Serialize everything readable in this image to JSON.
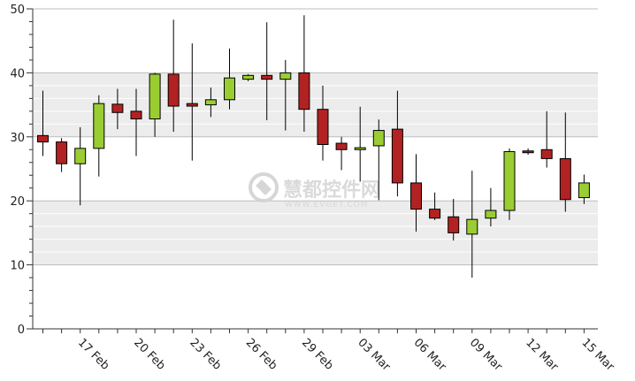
{
  "chart_data": {
    "type": "candlestick",
    "ylim": [
      0,
      50
    ],
    "yticks": [
      0,
      10,
      20,
      30,
      40,
      50
    ],
    "x_tick_labels": [
      "17 Feb",
      "20 Feb",
      "23 Feb",
      "26 Feb",
      "29 Feb",
      "03 Mar",
      "06 Mar",
      "09 Mar",
      "12 Mar",
      "15 Mar"
    ],
    "colors": {
      "up": "#9acd32",
      "down": "#b22222",
      "band": "#ececec",
      "grid": "#bdbdbd"
    },
    "candles": [
      {
        "open": 30.2,
        "high": 37.2,
        "low": 27.0,
        "close": 29.2
      },
      {
        "open": 29.2,
        "high": 29.8,
        "low": 24.5,
        "close": 25.8
      },
      {
        "open": 25.8,
        "high": 31.5,
        "low": 19.3,
        "close": 28.2
      },
      {
        "open": 28.2,
        "high": 36.5,
        "low": 23.8,
        "close": 35.2
      },
      {
        "open": 35.1,
        "high": 37.5,
        "low": 31.2,
        "close": 33.8
      },
      {
        "open": 34.0,
        "high": 37.5,
        "low": 27.0,
        "close": 32.8
      },
      {
        "open": 32.8,
        "high": 40.0,
        "low": 30.0,
        "close": 39.8
      },
      {
        "open": 39.8,
        "high": 48.3,
        "low": 30.8,
        "close": 34.8
      },
      {
        "open": 35.2,
        "high": 44.6,
        "low": 26.3,
        "close": 34.8
      },
      {
        "open": 35.0,
        "high": 37.7,
        "low": 33.1,
        "close": 35.8
      },
      {
        "open": 35.8,
        "high": 43.8,
        "low": 34.3,
        "close": 39.2
      },
      {
        "open": 39.0,
        "high": 39.8,
        "low": 38.7,
        "close": 39.6
      },
      {
        "open": 39.6,
        "high": 47.9,
        "low": 32.6,
        "close": 39.0
      },
      {
        "open": 39.0,
        "high": 42.0,
        "low": 31.0,
        "close": 40.0
      },
      {
        "open": 40.0,
        "high": 49.0,
        "low": 30.8,
        "close": 34.3
      },
      {
        "open": 34.3,
        "high": 38.0,
        "low": 26.3,
        "close": 28.8
      },
      {
        "open": 29.0,
        "high": 30.0,
        "low": 24.8,
        "close": 28.0
      },
      {
        "open": 28.0,
        "high": 34.7,
        "low": 23.0,
        "close": 28.3
      },
      {
        "open": 28.6,
        "high": 32.7,
        "low": 20.1,
        "close": 31.0
      },
      {
        "open": 31.2,
        "high": 37.2,
        "low": 20.7,
        "close": 22.8
      },
      {
        "open": 22.8,
        "high": 27.3,
        "low": 15.2,
        "close": 18.7
      },
      {
        "open": 18.7,
        "high": 21.3,
        "low": 17.0,
        "close": 17.3
      },
      {
        "open": 17.5,
        "high": 20.3,
        "low": 13.8,
        "close": 15.0
      },
      {
        "open": 14.8,
        "high": 24.7,
        "low": 8.0,
        "close": 17.1
      },
      {
        "open": 17.3,
        "high": 22.0,
        "low": 16.0,
        "close": 18.5
      },
      {
        "open": 18.5,
        "high": 28.2,
        "low": 17.0,
        "close": 27.7
      },
      {
        "open": 27.8,
        "high": 28.2,
        "low": 27.2,
        "close": 27.6
      },
      {
        "open": 28.0,
        "high": 34.0,
        "low": 25.2,
        "close": 26.6
      },
      {
        "open": 26.6,
        "high": 33.8,
        "low": 18.3,
        "close": 20.2
      },
      {
        "open": 20.5,
        "high": 24.1,
        "low": 19.5,
        "close": 22.8
      }
    ]
  },
  "watermark": {
    "cn": "慧都控件网",
    "en": "WWW.EVGET.COM"
  }
}
